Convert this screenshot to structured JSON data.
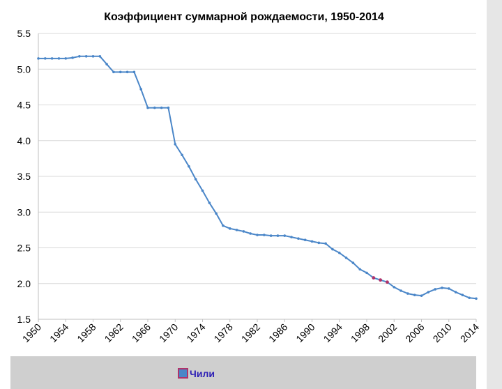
{
  "chart_data": {
    "type": "line",
    "title": "Коэффициент суммарной рождаемости, 1950-2014",
    "xlabel": "",
    "ylabel": "",
    "xlim": [
      1950,
      2014
    ],
    "ylim": [
      1.5,
      5.5
    ],
    "y_ticks": [
      "1.5",
      "2.0",
      "2.5",
      "3.0",
      "3.5",
      "4.0",
      "4.5",
      "5.0",
      "5.5"
    ],
    "x_ticks": [
      "1950",
      "1954",
      "1958",
      "1962",
      "1966",
      "1970",
      "1974",
      "1978",
      "1982",
      "1986",
      "1990",
      "1994",
      "1998",
      "2002",
      "2006",
      "2010",
      "2014"
    ],
    "grid": true,
    "legend_position": "bottom",
    "series": [
      {
        "name": "Чили",
        "color": "#4a86c8",
        "x": [
          1950,
          1951,
          1952,
          1953,
          1954,
          1955,
          1956,
          1957,
          1958,
          1959,
          1960,
          1961,
          1962,
          1963,
          1964,
          1965,
          1966,
          1967,
          1968,
          1969,
          1970,
          1971,
          1972,
          1973,
          1974,
          1975,
          1976,
          1977,
          1978,
          1979,
          1980,
          1981,
          1982,
          1983,
          1984,
          1985,
          1986,
          1987,
          1988,
          1989,
          1990,
          1991,
          1992,
          1993,
          1994,
          1995,
          1996,
          1997,
          1998,
          1999,
          2000,
          2001,
          2002,
          2003,
          2004,
          2005,
          2006,
          2007,
          2008,
          2009,
          2010,
          2011,
          2012,
          2013,
          2014
        ],
        "values": [
          5.15,
          5.15,
          5.15,
          5.15,
          5.15,
          5.16,
          5.18,
          5.18,
          5.18,
          5.18,
          5.07,
          4.96,
          4.96,
          4.96,
          4.96,
          4.72,
          4.46,
          4.46,
          4.46,
          4.46,
          3.95,
          3.8,
          3.64,
          3.46,
          3.3,
          3.13,
          2.98,
          2.81,
          2.77,
          2.75,
          2.73,
          2.7,
          2.68,
          2.68,
          2.67,
          2.67,
          2.67,
          2.65,
          2.63,
          2.61,
          2.59,
          2.57,
          2.56,
          2.48,
          2.43,
          2.36,
          2.29,
          2.2,
          2.15,
          2.08,
          2.05,
          2.02,
          1.95,
          1.9,
          1.86,
          1.84,
          1.83,
          1.88,
          1.92,
          1.94,
          1.93,
          1.88,
          1.84,
          1.8,
          1.79
        ],
        "highlight_years": [
          1999,
          2000,
          2001
        ],
        "highlight_color": "#b0336a"
      }
    ]
  }
}
